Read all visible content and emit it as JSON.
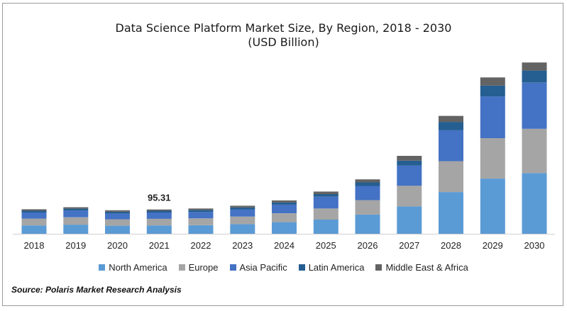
{
  "title": "Data Science Platform Market Size, By Region, 2018 - 2030",
  "subtitle": "(USD Billion)",
  "source": "Source: Polaris Market Research Analysis",
  "colors": {
    "North America": "#5b9bd5",
    "Europe": "#a5a5a5",
    "Asia Pacific": "#4472c4",
    "Latin America": "#255e91",
    "Middle East & Africa": "#636363"
  },
  "chart_data": {
    "type": "bar",
    "stacked": true,
    "title": "Data Science Platform Market Size, By Region, 2018 - 2030",
    "subtitle": "(USD Billion)",
    "categories": [
      "2018",
      "2019",
      "2020",
      "2021",
      "2022",
      "2023",
      "2024",
      "2025",
      "2026",
      "2027",
      "2028",
      "2029",
      "2030"
    ],
    "series": [
      {
        "name": "North America",
        "values": [
          33,
          36,
          32,
          33,
          34,
          38,
          46,
          56,
          76,
          108,
          165,
          218,
          240
        ]
      },
      {
        "name": "Europe",
        "values": [
          27,
          29,
          25,
          26,
          27,
          30,
          35,
          44,
          57,
          82,
          122,
          160,
          175
        ]
      },
      {
        "name": "Asia Pacific",
        "values": [
          24,
          27,
          23,
          25,
          25,
          28,
          34,
          46,
          56,
          80,
          122,
          165,
          182
        ]
      },
      {
        "name": "Latin America",
        "values": [
          7,
          7,
          7,
          7,
          8,
          8,
          9,
          11,
          14,
          19,
          33,
          43,
          48
        ]
      },
      {
        "name": "Middle East & Africa",
        "values": [
          6,
          6,
          6,
          5,
          6,
          7,
          8,
          10,
          12,
          19,
          24,
          32,
          32
        ]
      }
    ],
    "data_labels": [
      {
        "category": "2021",
        "text": "95.31"
      }
    ],
    "ylim": [
      0,
      700
    ],
    "legend_position": "bottom",
    "grid": false
  }
}
